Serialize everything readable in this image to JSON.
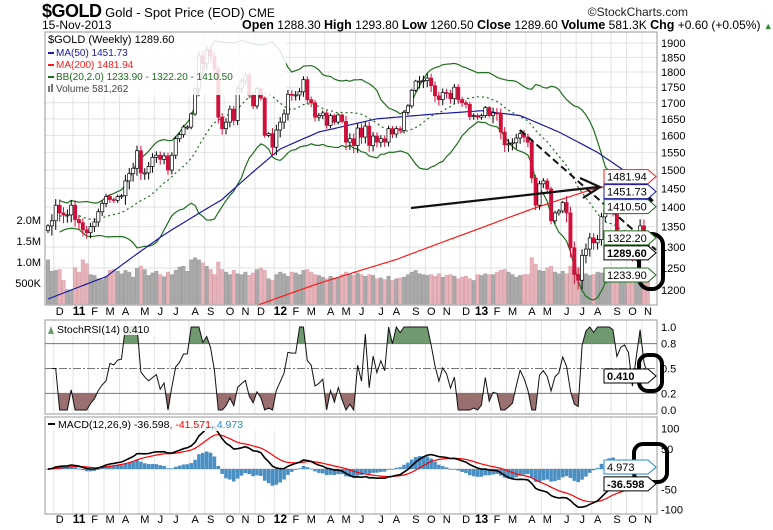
{
  "header": {
    "symbol": "$GOLD",
    "name": "Gold - Spot Price (EOD)",
    "exchange": "CME",
    "copyright": "©StockCharts.com",
    "date": "15-Nov-2013",
    "open_label": "Open",
    "open": "1288.30",
    "high_label": "High",
    "high": "1293.80",
    "low_label": "Low",
    "low": "1260.50",
    "close_label": "Close",
    "close": "1289.60",
    "volume_label": "Volume",
    "volume": "581.3K",
    "chg_label": "Chg",
    "chg": "+0.60 (+0.05%)"
  },
  "legend": {
    "price": "$GOLD (Weekly) 1289.60",
    "ma50": "MA(50) 1451.73",
    "ma200": "MA(200) 1481.94",
    "bb": "BB(20,2.0) 1233.90 - 1322.20 - 1410.50",
    "volume": "Volume 581,262",
    "stoch": "StochRSI(14) 0.410",
    "macd_name": "MACD(12,26,9) -36.598",
    "macd_signal": ", -41.571",
    "macd_hist": ", 4.973"
  },
  "colors": {
    "up": "#ffffff",
    "down": "#d0103a",
    "ma50": "#1a1aa0",
    "ma200": "#ff1a1a",
    "bb": "#1f6e1f",
    "vol_up": "#aaaaaa",
    "vol_down": "#e8b4bb",
    "stoch_high": "#6f9a6f",
    "stoch_low": "#9a6f6f",
    "macd": "#000000",
    "signal": "#ff0000",
    "hist": "#4a8fc4"
  },
  "chart_data": [
    {
      "type": "candlestick",
      "title": "$GOLD (Weekly)",
      "y_scale": "log",
      "ylim": [
        1180,
        1930
      ],
      "y_ticks": [
        1200,
        1250,
        1300,
        1350,
        1400,
        1450,
        1500,
        1550,
        1600,
        1650,
        1700,
        1750,
        1800,
        1850,
        1900
      ],
      "volume_ticks": [
        "500K",
        "1.0M",
        "1.5M",
        "2.0M"
      ],
      "volume_tick_values": [
        500,
        1000,
        1500,
        2000
      ],
      "grid": true,
      "x_tick_labels": [
        "D",
        "11",
        "F",
        "M",
        "A",
        "M",
        "J",
        "J",
        "A",
        "S",
        "O",
        "N",
        "D",
        "12",
        "F",
        "M",
        "A",
        "M",
        "J",
        "J",
        "A",
        "S",
        "O",
        "N",
        "D",
        "13",
        "F",
        "M",
        "A",
        "M",
        "J",
        "J",
        "A",
        "S",
        "O",
        "N"
      ],
      "weekly_close": [
        1352,
        1365,
        1405,
        1385,
        1380,
        1380,
        1405,
        1368,
        1360,
        1342,
        1335,
        1350,
        1362,
        1388,
        1410,
        1428,
        1420,
        1418,
        1428,
        1430,
        1470,
        1490,
        1505,
        1555,
        1492,
        1492,
        1510,
        1536,
        1542,
        1530,
        1540,
        1500,
        1542,
        1590,
        1602,
        1625,
        1625,
        1665,
        1745,
        1855,
        1828,
        1875,
        1855,
        1810,
        1655,
        1620,
        1640,
        1680,
        1645,
        1745,
        1770,
        1790,
        1725,
        1690,
        1745,
        1715,
        1600,
        1605,
        1565,
        1616,
        1640,
        1665,
        1727,
        1725,
        1725,
        1735,
        1775,
        1710,
        1700,
        1655,
        1660,
        1668,
        1630,
        1660,
        1640,
        1662,
        1642,
        1580,
        1590,
        1570,
        1622,
        1595,
        1628,
        1570,
        1598,
        1580,
        1590,
        1580,
        1620,
        1604,
        1620,
        1615,
        1670,
        1690,
        1740,
        1770,
        1770,
        1772,
        1780,
        1755,
        1722,
        1710,
        1733,
        1730,
        1713,
        1750,
        1710,
        1700,
        1695,
        1657,
        1660,
        1655,
        1660,
        1685,
        1660,
        1668,
        1667,
        1610,
        1572,
        1575,
        1578,
        1592,
        1605,
        1595,
        1580,
        1478,
        1405,
        1462,
        1470,
        1448,
        1365,
        1385,
        1390,
        1412,
        1385,
        1298,
        1235,
        1222,
        1280,
        1295,
        1322,
        1310,
        1318,
        1375,
        1395,
        1395,
        1388,
        1310,
        1330,
        1335,
        1312,
        1272,
        1315,
        1352,
        1308,
        1289.6
      ],
      "weekly_volume_k": [
        1050,
        780,
        800,
        820,
        560,
        340,
        340,
        870,
        760,
        1050,
        960,
        700,
        680,
        600,
        580,
        650,
        800,
        820,
        780,
        720,
        800,
        760,
        640,
        850,
        900,
        820,
        680,
        740,
        780,
        700,
        650,
        760,
        700,
        800,
        880,
        900,
        780,
        1050,
        1100,
        1050,
        980,
        900,
        820,
        700,
        1000,
        820,
        760,
        700,
        800,
        720,
        700,
        760,
        680,
        740,
        820,
        860,
        800,
        600,
        560,
        700,
        760,
        720,
        660,
        760,
        740,
        700,
        800,
        820,
        760,
        700,
        680,
        640,
        600,
        660,
        620,
        640,
        700,
        760,
        720,
        680,
        740,
        700,
        660,
        700,
        680,
        600,
        620,
        580,
        660,
        560,
        600,
        620,
        640,
        700,
        760,
        800,
        720,
        700,
        680,
        700,
        660,
        720,
        640,
        680,
        700,
        660,
        600,
        640,
        660,
        600,
        560,
        700,
        680,
        720,
        700,
        700,
        760,
        800,
        820,
        760,
        700,
        640,
        680,
        700,
        700,
        1100,
        950,
        800,
        780,
        860,
        900,
        760,
        720,
        780,
        720,
        900,
        1000,
        880,
        760,
        720,
        680,
        700,
        760,
        740,
        720,
        680,
        700,
        720,
        680,
        660,
        640,
        620,
        600,
        620,
        600,
        581
      ],
      "ma50_points": [
        [
          0,
          1180
        ],
        [
          15,
          1230
        ],
        [
          30,
          1330
        ],
        [
          45,
          1420
        ],
        [
          60,
          1560
        ],
        [
          70,
          1610
        ],
        [
          85,
          1650
        ],
        [
          100,
          1665
        ],
        [
          112,
          1675
        ],
        [
          122,
          1660
        ],
        [
          132,
          1610
        ],
        [
          142,
          1550
        ],
        [
          150,
          1490
        ],
        [
          155,
          1451.73
        ]
      ],
      "ma200_points": [
        [
          54,
          1166
        ],
        [
          70,
          1215
        ],
        [
          90,
          1270
        ],
        [
          110,
          1340
        ],
        [
          125,
          1395
        ],
        [
          140,
          1445
        ],
        [
          155,
          1481.94
        ]
      ],
      "bb_last": {
        "lower": 1233.9,
        "middle": 1322.2,
        "upper": 1410.5
      },
      "tags": [
        {
          "label": "1481.94",
          "value": 1481.94,
          "color": "#ff1a1a"
        },
        {
          "label": "1451.73",
          "value": 1451.73,
          "color": "#1a1aa0"
        },
        {
          "label": "1410.50",
          "value": 1410.5,
          "color": "#1f6e1f"
        },
        {
          "label": "1322.20",
          "value": 1322.2,
          "color": "#1f6e1f"
        },
        {
          "label": "1289.60",
          "value": 1289.6,
          "color": "#000000"
        },
        {
          "label": "1233.90",
          "value": 1233.9,
          "color": "#1f6e1f"
        }
      ]
    },
    {
      "type": "line",
      "title": "StochRSI(14)",
      "ylim": [
        0,
        1
      ],
      "y_ticks": [
        "0.0",
        "0.2",
        "0.5",
        "0.8",
        "1.0"
      ],
      "y_tick_values": [
        0,
        0.2,
        0.5,
        0.8,
        1.0
      ],
      "last": 0.41,
      "last_label": "0.410"
    },
    {
      "type": "line",
      "title": "MACD(12,26,9)",
      "ylim": [
        -110,
        110
      ],
      "y_ticks": [
        "100",
        "50",
        "-50",
        "-100"
      ],
      "y_tick_values": [
        100,
        50,
        -50,
        -100
      ],
      "macd_last": -36.598,
      "signal_last": -41.571,
      "hist_last": 4.973,
      "macd_label": "-36.598",
      "hist_label": "4.973"
    }
  ]
}
